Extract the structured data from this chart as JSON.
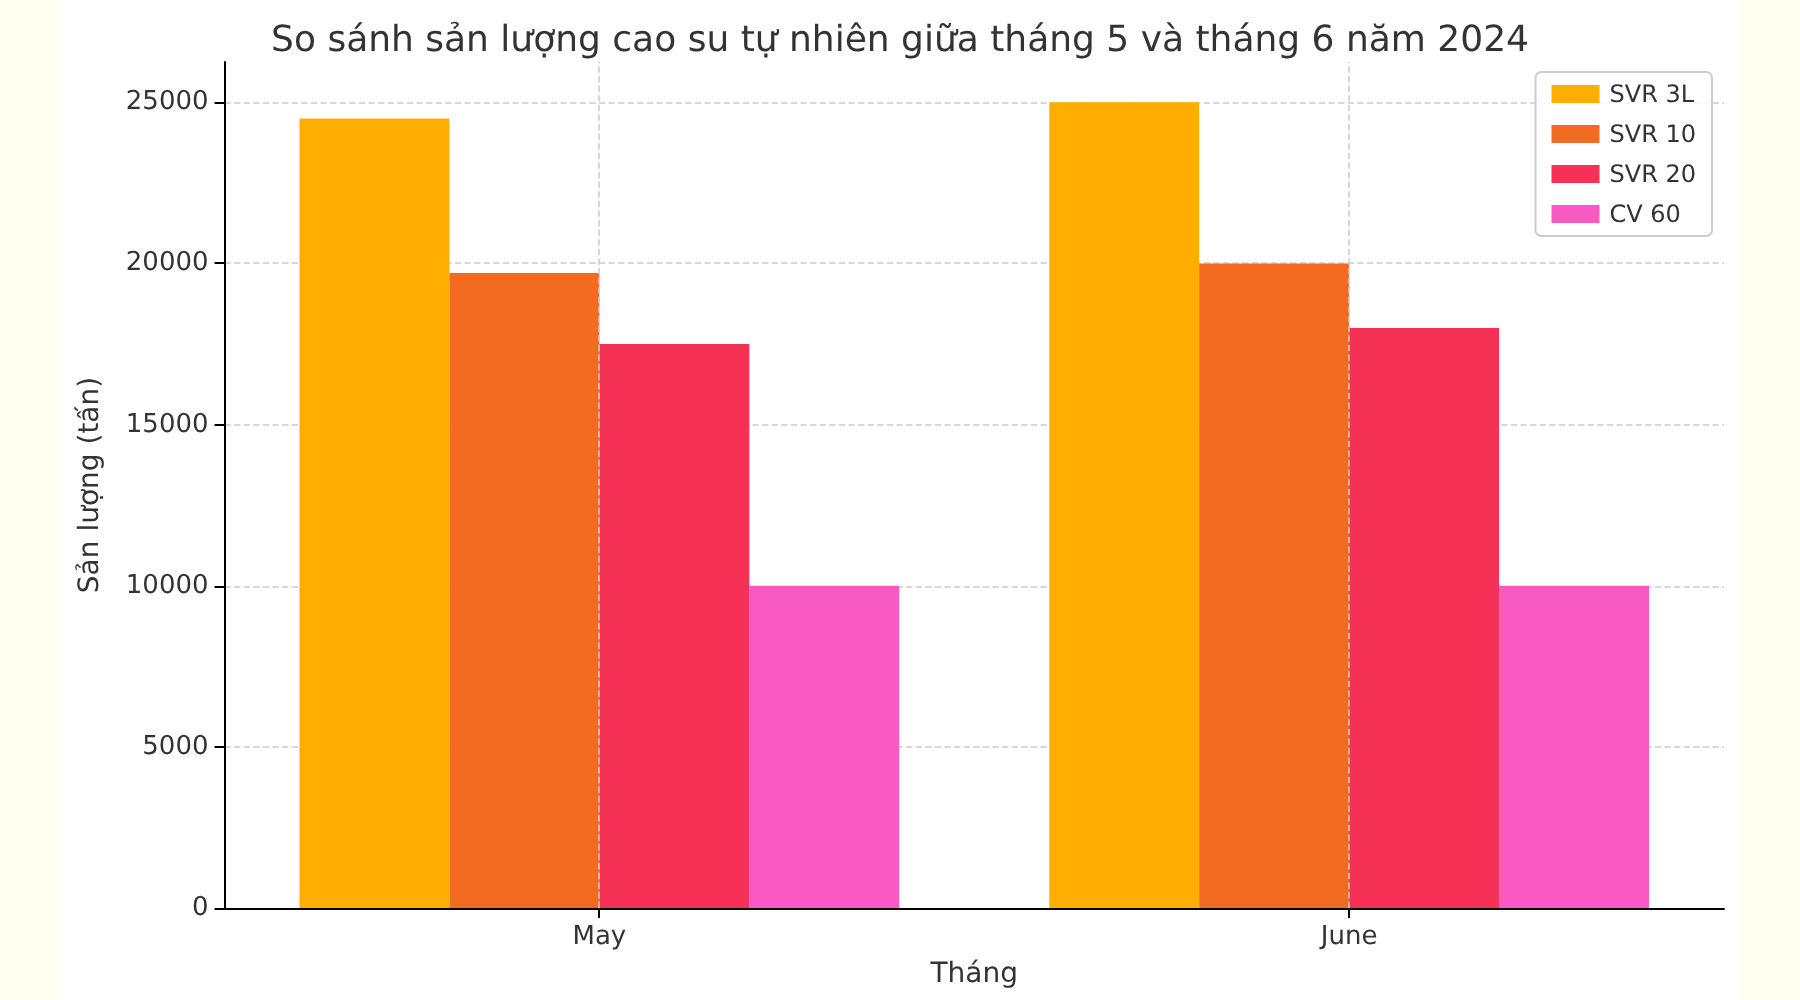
{
  "chart_data": {
    "type": "bar",
    "title": "So sánh sản lượng cao su tự nhiên giữa tháng 5 và tháng 6 năm 2024",
    "xlabel": "Tháng",
    "ylabel": "Sản lượng (tấn)",
    "categories": [
      "May",
      "June"
    ],
    "series": [
      {
        "name": "SVR 3L",
        "color": "#ffae00",
        "values": [
          24500,
          25000
        ]
      },
      {
        "name": "SVR 10",
        "color": "#f26b21",
        "values": [
          19700,
          20000
        ]
      },
      {
        "name": "SVR 20",
        "color": "#f53255",
        "values": [
          17500,
          18000
        ]
      },
      {
        "name": "CV 60",
        "color": "#f959c3",
        "values": [
          10000,
          10000
        ]
      }
    ],
    "ylim": [
      0,
      26250
    ],
    "yticks": [
      0,
      5000,
      10000,
      15000,
      20000,
      25000
    ],
    "grid": true,
    "legend": "top right"
  }
}
